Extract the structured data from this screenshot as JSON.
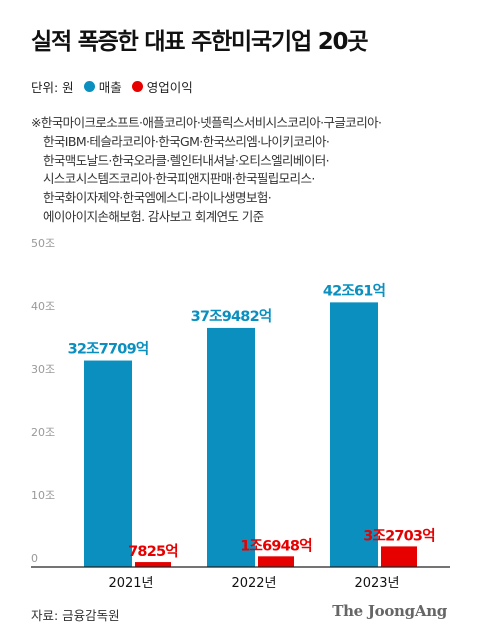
{
  "title": "실적 폭증한 대표 주한미국기업 20곳",
  "legend": {
    "unit": "단위: 원",
    "items": [
      {
        "label": "매출",
        "color": "#0a8fbf"
      },
      {
        "label": "영업이익",
        "color": "#e60000"
      }
    ]
  },
  "note_lines": [
    "※한국마이크로소프트·애플코리아·넷플릭스서비시스코리아·구글코리아·",
    "한국IBM·테슬라코리아·한국GM·한국쓰리엠·나이키코리아·",
    "한국맥도날드·한국오라클·렐인터내셔날·오티스엘리베이터·",
    "시스코시스템즈코리아·한국피앤지판매·한국필립모리스·",
    "한국화이자제약·한국엠에스디·라이나생명보험·",
    "에이아이지손해보험. 감사보고 회계연도 기준"
  ],
  "chart_data": {
    "type": "bar",
    "categories": [
      "2021년",
      "2022년",
      "2023년"
    ],
    "series": [
      {
        "name": "매출",
        "values": [
          32.7709,
          37.9482,
          42.0061
        ],
        "labels": [
          "32조7709억",
          "37조9482억",
          "42조61억"
        ],
        "color": "#0a8fbf"
      },
      {
        "name": "영업이익",
        "values": [
          0.7825,
          1.6948,
          3.2703
        ],
        "labels": [
          "7825억",
          "1조6948억",
          "3조2703억"
        ],
        "color": "#e60000"
      }
    ],
    "y_ticks": [
      "0",
      "10조",
      "20조",
      "30조",
      "40조",
      "50조"
    ],
    "ylim": [
      0,
      50
    ],
    "grid": false
  },
  "source": "자료: 금융감독원",
  "logo": "The JoongAng"
}
